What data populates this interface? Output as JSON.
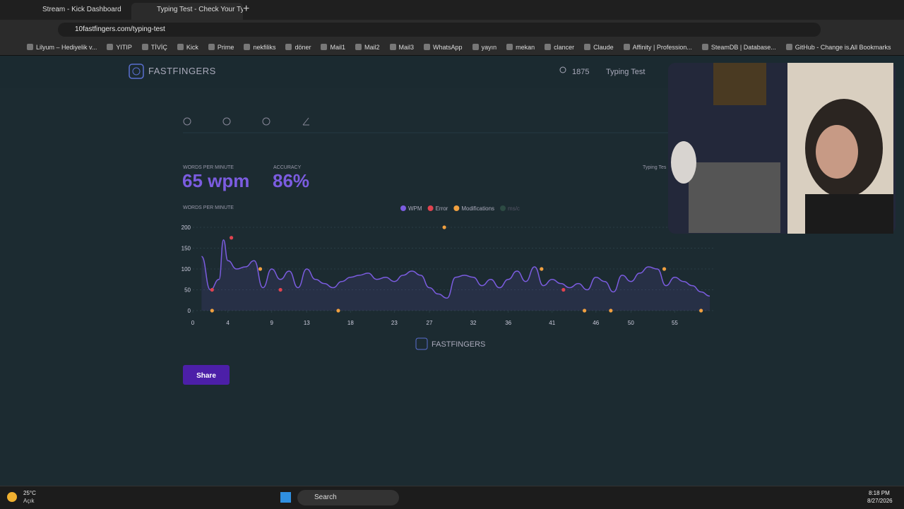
{
  "browser": {
    "tabs": [
      "Stream - Kick Dashboard",
      "Typing Test - Check Your Typing"
    ],
    "url": "10fastfingers.com/typing-test",
    "bookmarks": [
      "Lilyum – Hediyelik v...",
      "YITIP",
      "TİVİÇ",
      "Kick",
      "Prime",
      "nekfiliks",
      "döner",
      "Mail1",
      "Mail2",
      "Mail3",
      "WhatsApp",
      "yayın",
      "mekan",
      "clancer",
      "Claude",
      "Affinity | Profession...",
      "SteamDB | Database...",
      "GitHub - Change is..."
    ],
    "all_bookmarks": "All Bookmarks"
  },
  "site": {
    "logo": "FASTFINGERS",
    "user_count": "1875",
    "nav_link": "Typing Test"
  },
  "stats": {
    "wpm_label": "WORDS PER MINUTE",
    "wpm": "65 wpm",
    "accuracy_label": "ACCURACY",
    "accuracy": "86%",
    "side_label": "Typing Tes"
  },
  "chart_data": {
    "type": "line",
    "title": "WORDS PER MINUTE",
    "xlim": [
      0,
      59.4
    ],
    "xticks": [
      0,
      4,
      9,
      13,
      18,
      23,
      27,
      32,
      36,
      41,
      46,
      50,
      55
    ],
    "ylim": [
      0,
      200
    ],
    "yticks": [
      0,
      50,
      100,
      150,
      200
    ],
    "grid": true,
    "series": [
      {
        "name": "WPM",
        "color": "#7b5ce0",
        "x": [
          1,
          2,
          3,
          3.5,
          4,
          5,
          6,
          7,
          8,
          9,
          10,
          11,
          12,
          13,
          14,
          15,
          16,
          17,
          18,
          19,
          20,
          21,
          22,
          23,
          24,
          25,
          26,
          27,
          28,
          29,
          30,
          31,
          32,
          33,
          34,
          35,
          36,
          37,
          38,
          39,
          40,
          41,
          42,
          43,
          44,
          45,
          46,
          47,
          48,
          49,
          50,
          51,
          52,
          53,
          54,
          55,
          56,
          57,
          58,
          59
        ],
        "values": [
          130,
          50,
          75,
          170,
          120,
          100,
          105,
          120,
          55,
          100,
          75,
          95,
          55,
          100,
          75,
          65,
          55,
          70,
          80,
          85,
          90,
          75,
          80,
          70,
          85,
          95,
          85,
          55,
          40,
          30,
          80,
          85,
          80,
          60,
          75,
          55,
          75,
          95,
          70,
          105,
          60,
          75,
          65,
          55,
          65,
          50,
          80,
          70,
          45,
          85,
          70,
          90,
          105,
          100,
          60,
          80,
          70,
          60,
          45,
          35
        ]
      },
      {
        "name": "Error",
        "color": "#e0434f",
        "x": [
          2.2,
          4.4,
          10,
          42.3
        ],
        "values": [
          50,
          175,
          50,
          50
        ]
      },
      {
        "name": "Modifications",
        "color": "#f0a040",
        "x": [
          2.2,
          7.7,
          16.6,
          28.7,
          39.8,
          44.7,
          47.7,
          53.8,
          58
        ],
        "values": [
          0,
          100,
          0,
          200,
          100,
          0,
          0,
          100,
          0
        ]
      },
      {
        "name": "ms/c",
        "color": "#3d6b55",
        "hidden": true,
        "x": [],
        "values": []
      }
    ]
  },
  "footer": {
    "logo": "FASTFINGERS",
    "share": "Share"
  },
  "taskbar": {
    "temp": "25°C",
    "weather": "Açık",
    "search": "Search",
    "time": "8:18 PM",
    "date": "8/27/2026"
  }
}
